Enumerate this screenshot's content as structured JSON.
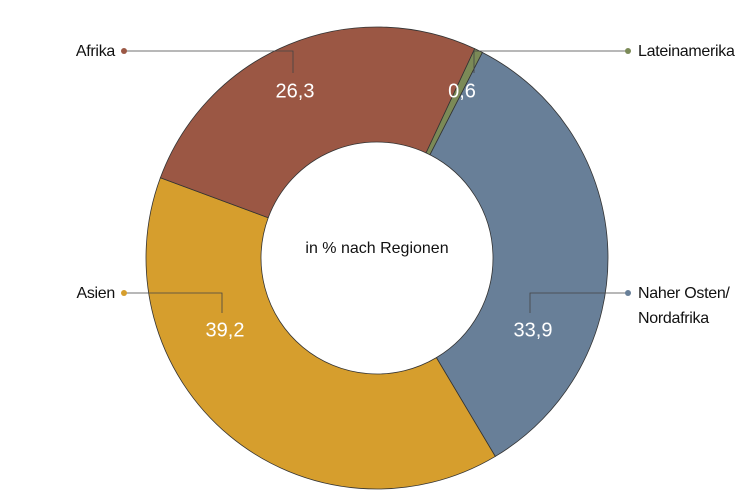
{
  "chart_data": {
    "type": "donut",
    "title": "in % nach Regionen",
    "categories": [
      "Lateinamerika",
      "Naher Osten/ Nordafrika",
      "Asien",
      "Afrika"
    ],
    "values": [
      0.6,
      33.9,
      39.2,
      26.3
    ],
    "value_labels": [
      "0,6",
      "33,9",
      "39,2",
      "26,3"
    ],
    "colors": [
      "#7b8a57",
      "#687f98",
      "#d69e2d",
      "#9b5744"
    ]
  }
}
